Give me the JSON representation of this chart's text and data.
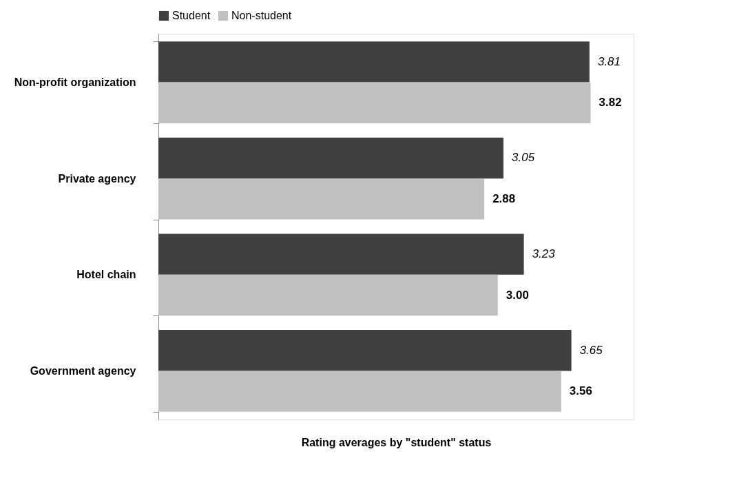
{
  "chart_data": {
    "type": "bar",
    "orientation": "horizontal",
    "categories": [
      "Non-profit organization",
      "Private agency",
      "Hotel chain",
      "Government agency"
    ],
    "series": [
      {
        "name": "Student",
        "color": "#404040",
        "values": [
          3.81,
          3.05,
          3.23,
          3.65
        ],
        "value_labels": [
          "3.81",
          "3.05",
          "3.23",
          "3.65"
        ]
      },
      {
        "name": "Non-student",
        "color": "#c0c0c0",
        "values": [
          3.82,
          2.88,
          3.0,
          3.56
        ],
        "value_labels": [
          "3.82",
          "2.88",
          "3.00",
          "3.56"
        ]
      }
    ],
    "xlim": [
      0,
      4.2
    ],
    "xlabel": "Rating averages by \"student\" status",
    "legend": "top",
    "grid": false,
    "tick_labels": "y"
  }
}
